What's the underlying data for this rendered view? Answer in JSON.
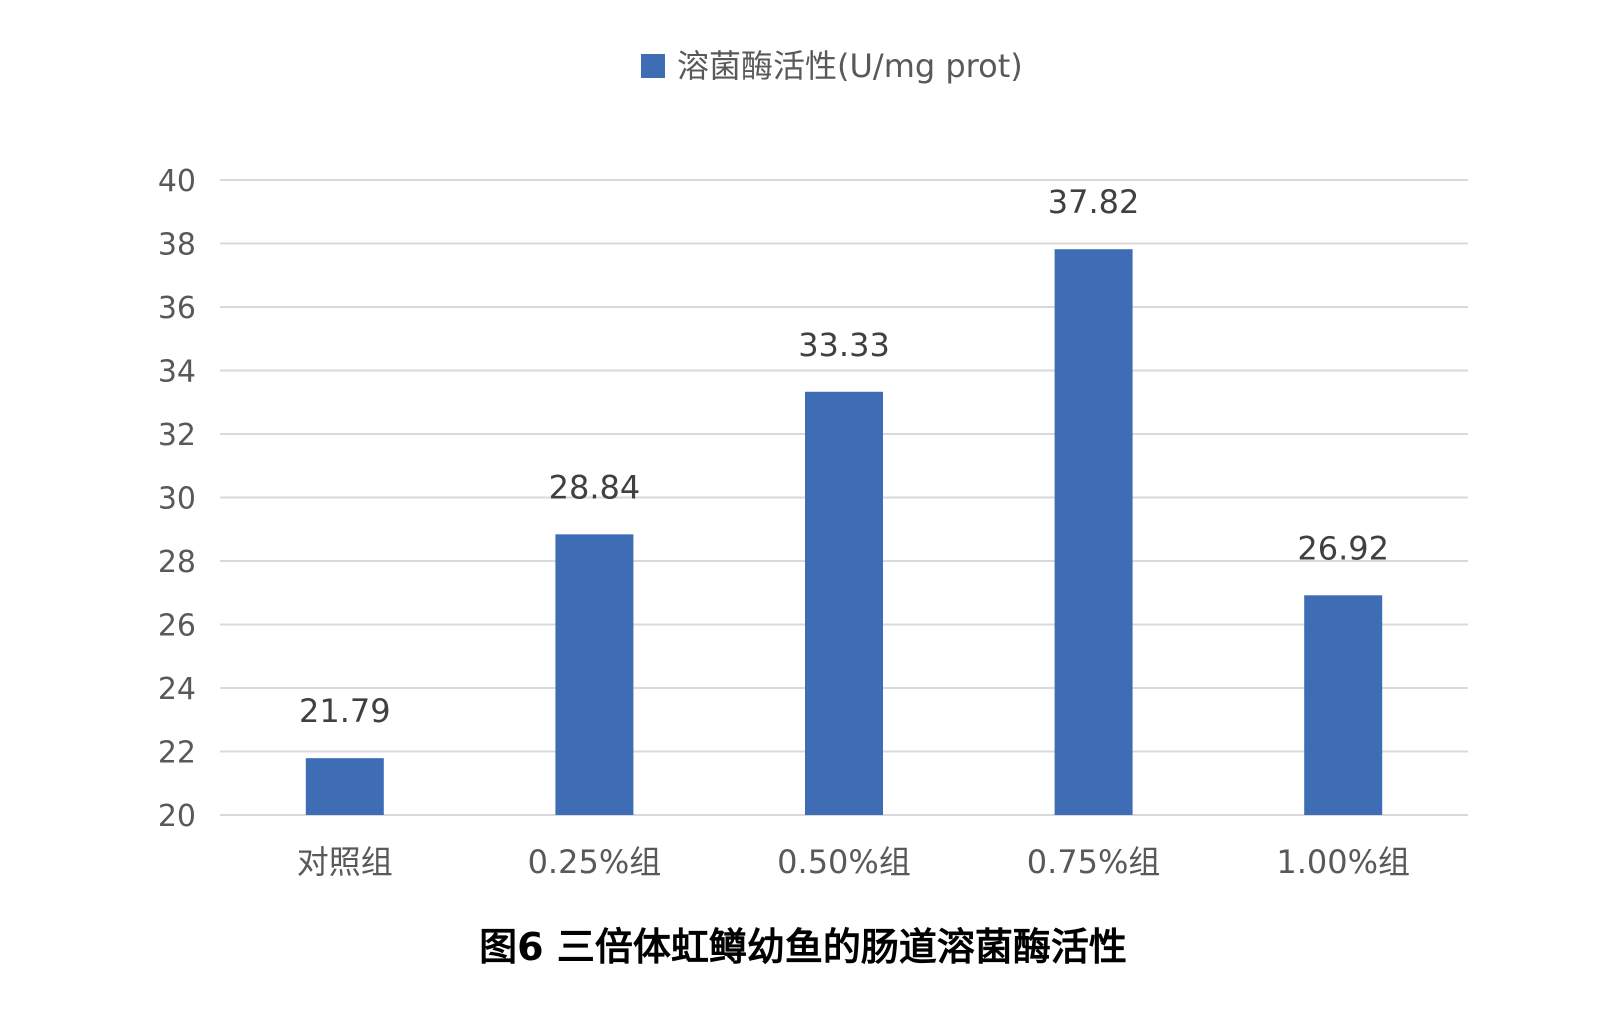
{
  "chart_data": {
    "type": "bar",
    "title": "",
    "caption": "图6 三倍体虹鳟幼鱼的肠道溶菌酶活性",
    "xlabel": "",
    "ylabel": "",
    "categories": [
      "对照组",
      "0.25%组",
      "0.50%组",
      "0.75%组",
      "1.00%组"
    ],
    "series": [
      {
        "name": "溶菌酶活性(U/mg prot)",
        "values": [
          21.79,
          28.84,
          33.33,
          37.82,
          26.92
        ],
        "color": "#3E6DB5"
      }
    ],
    "ylim": [
      20,
      40
    ],
    "yticks": [
      20,
      22,
      24,
      26,
      28,
      30,
      32,
      34,
      36,
      38,
      40
    ],
    "data_labels": [
      "21.79",
      "28.84",
      "33.33",
      "37.82",
      "26.92"
    ],
    "grid": true,
    "legend_position": "top-center",
    "gridline_color": "#D9D9D9"
  }
}
